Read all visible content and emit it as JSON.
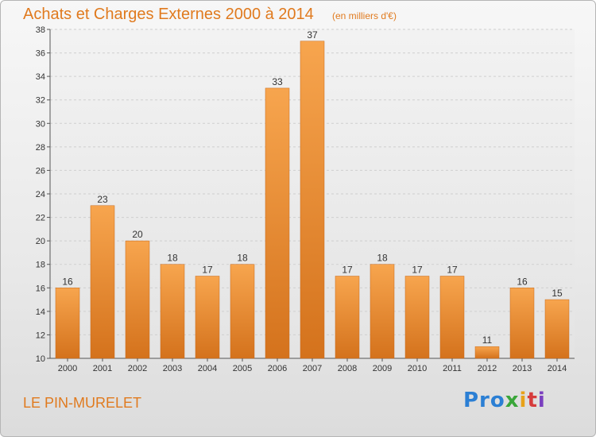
{
  "header": {
    "title": "Achats et Charges Externes 2000 à 2014",
    "unit": "(en milliers d'€)"
  },
  "footer": {
    "place": "LE PIN-MURELET",
    "logo": [
      "Pro",
      "x",
      "i",
      "t",
      "i"
    ]
  },
  "colors": {
    "accent": "#e07a1e",
    "bar_top": "#f7a54e",
    "bar_bottom": "#d4721c"
  },
  "chart_data": {
    "type": "bar",
    "title": "Achats et Charges Externes 2000 à 2014",
    "subtitle": "(en milliers d'€)",
    "categories": [
      "2000",
      "2001",
      "2002",
      "2003",
      "2004",
      "2005",
      "2006",
      "2007",
      "2008",
      "2009",
      "2010",
      "2011",
      "2012",
      "2013",
      "2014"
    ],
    "values": [
      16,
      23,
      20,
      18,
      17,
      18,
      33,
      37,
      17,
      18,
      17,
      17,
      11,
      16,
      15
    ],
    "ylim": [
      10,
      38
    ],
    "yticks": [
      10,
      12,
      14,
      16,
      18,
      20,
      22,
      24,
      26,
      28,
      30,
      32,
      34,
      36,
      38
    ],
    "grid": true,
    "data_labels": true
  }
}
